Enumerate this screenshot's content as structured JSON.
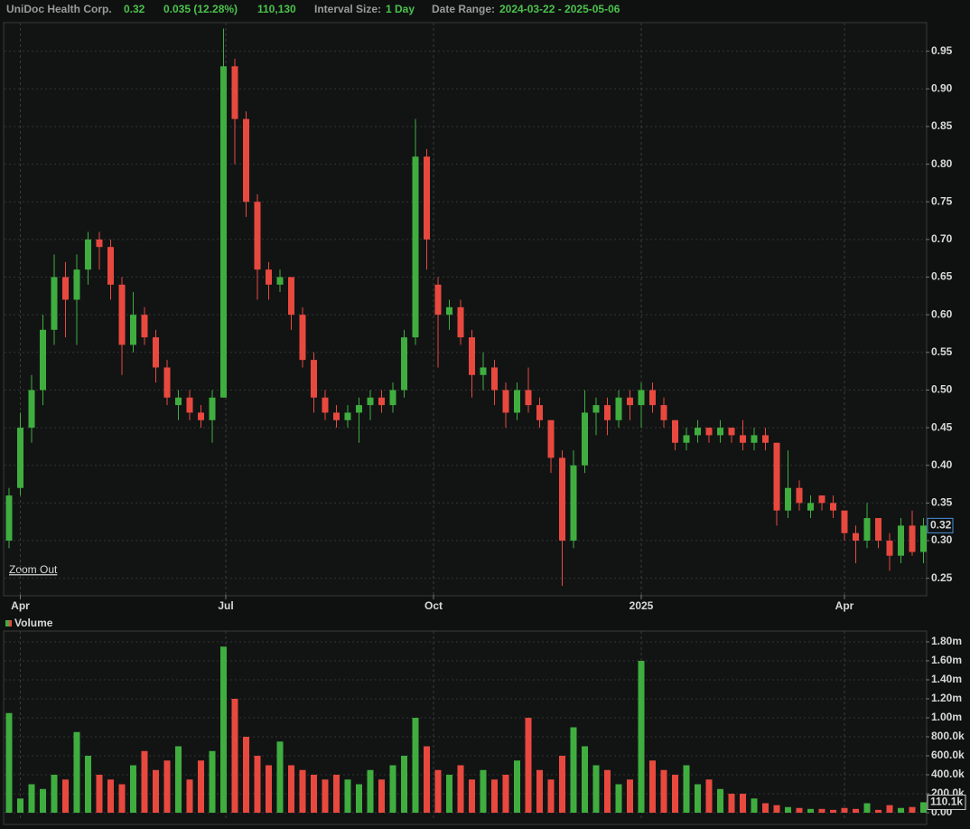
{
  "header": {
    "title": "UniDoc Health Corp.",
    "price": "0.32",
    "change": "0.035 (12.28%)",
    "volume": "110,130",
    "interval_label": "Interval Size:",
    "interval": "1 Day",
    "range_label": "Date Range:",
    "range": "2024-03-22 - 2025-05-06"
  },
  "chart_data": [
    {
      "type": "candlestick",
      "zoom_label": "Zoom Out",
      "up_color": "#3fae3f",
      "down_color": "#e8493f",
      "grid": true,
      "xlim": [
        "2024-03-25",
        "2025-05-07"
      ],
      "xticks": [
        {
          "value": "2024-04-01",
          "label": "Apr"
        },
        {
          "value": "2024-07-01",
          "label": "Jul"
        },
        {
          "value": "2024-10-01",
          "label": "Oct"
        },
        {
          "value": "2025-01-01",
          "label": "2025"
        },
        {
          "value": "2025-04-01",
          "label": "Apr"
        }
      ],
      "ylim": [
        0.228,
        0.988
      ],
      "yticks": [
        0.25,
        {
          "value": 0.3,
          "label": "0.30"
        },
        0.35,
        {
          "value": 0.4,
          "label": "0.40"
        },
        0.45,
        {
          "value": 0.5,
          "label": "0.50"
        },
        0.55,
        {
          "value": 0.6,
          "label": "0.60"
        },
        0.65,
        {
          "value": 0.7,
          "label": "0.70"
        },
        0.75,
        {
          "value": 0.8,
          "label": "0.80"
        },
        0.85,
        {
          "value": 0.9,
          "label": "0.90"
        },
        0.95
      ],
      "x": [
        "2024-03-27",
        "2024-04-01",
        "2024-04-06",
        "2024-04-11",
        "2024-04-16",
        "2024-04-21",
        "2024-04-26",
        "2024-05-01",
        "2024-05-06",
        "2024-05-11",
        "2024-05-16",
        "2024-05-21",
        "2024-05-26",
        "2024-05-31",
        "2024-06-05",
        "2024-06-10",
        "2024-06-15",
        "2024-06-20",
        "2024-06-25",
        "2024-06-30",
        "2024-07-05",
        "2024-07-10",
        "2024-07-15",
        "2024-07-20",
        "2024-07-25",
        "2024-07-30",
        "2024-08-04",
        "2024-08-09",
        "2024-08-14",
        "2024-08-19",
        "2024-08-24",
        "2024-08-29",
        "2024-09-03",
        "2024-09-08",
        "2024-09-13",
        "2024-09-18",
        "2024-09-23",
        "2024-09-28",
        "2024-10-03",
        "2024-10-08",
        "2024-10-13",
        "2024-10-18",
        "2024-10-23",
        "2024-10-28",
        "2024-11-02",
        "2024-11-07",
        "2024-11-12",
        "2024-11-17",
        "2024-11-22",
        "2024-11-27",
        "2024-12-02",
        "2024-12-07",
        "2024-12-12",
        "2024-12-17",
        "2024-12-22",
        "2024-12-27",
        "2025-01-01",
        "2025-01-06",
        "2025-01-11",
        "2025-01-16",
        "2025-01-21",
        "2025-01-26",
        "2025-01-31",
        "2025-02-05",
        "2025-02-10",
        "2025-02-15",
        "2025-02-20",
        "2025-02-25",
        "2025-03-02",
        "2025-03-07",
        "2025-03-12",
        "2025-03-17",
        "2025-03-22",
        "2025-03-27",
        "2025-04-01",
        "2025-04-06",
        "2025-04-11",
        "2025-04-16",
        "2025-04-21",
        "2025-04-26",
        "2025-05-01",
        "2025-05-06"
      ],
      "ohlc": [
        [
          0.3,
          0.37,
          0.29,
          0.36
        ],
        [
          0.37,
          0.47,
          0.36,
          0.45
        ],
        [
          0.45,
          0.52,
          0.43,
          0.5
        ],
        [
          0.5,
          0.6,
          0.48,
          0.58
        ],
        [
          0.58,
          0.68,
          0.56,
          0.65
        ],
        [
          0.65,
          0.67,
          0.57,
          0.62
        ],
        [
          0.62,
          0.68,
          0.56,
          0.66
        ],
        [
          0.66,
          0.71,
          0.64,
          0.7
        ],
        [
          0.7,
          0.71,
          0.66,
          0.69
        ],
        [
          0.69,
          0.7,
          0.62,
          0.64
        ],
        [
          0.64,
          0.65,
          0.52,
          0.56
        ],
        [
          0.56,
          0.63,
          0.55,
          0.6
        ],
        [
          0.6,
          0.61,
          0.56,
          0.57
        ],
        [
          0.57,
          0.58,
          0.51,
          0.53
        ],
        [
          0.53,
          0.54,
          0.48,
          0.49
        ],
        [
          0.48,
          0.5,
          0.46,
          0.49
        ],
        [
          0.49,
          0.5,
          0.46,
          0.47
        ],
        [
          0.47,
          0.48,
          0.45,
          0.46
        ],
        [
          0.46,
          0.5,
          0.43,
          0.49
        ],
        [
          0.49,
          0.98,
          0.49,
          0.93
        ],
        [
          0.93,
          0.94,
          0.8,
          0.86
        ],
        [
          0.86,
          0.87,
          0.73,
          0.75
        ],
        [
          0.75,
          0.76,
          0.62,
          0.66
        ],
        [
          0.66,
          0.67,
          0.62,
          0.64
        ],
        [
          0.64,
          0.66,
          0.63,
          0.65
        ],
        [
          0.65,
          0.65,
          0.58,
          0.6
        ],
        [
          0.6,
          0.61,
          0.53,
          0.54
        ],
        [
          0.54,
          0.55,
          0.47,
          0.49
        ],
        [
          0.49,
          0.5,
          0.46,
          0.47
        ],
        [
          0.47,
          0.48,
          0.45,
          0.46
        ],
        [
          0.46,
          0.48,
          0.45,
          0.47
        ],
        [
          0.47,
          0.49,
          0.43,
          0.48
        ],
        [
          0.48,
          0.5,
          0.46,
          0.49
        ],
        [
          0.49,
          0.5,
          0.47,
          0.48
        ],
        [
          0.48,
          0.51,
          0.47,
          0.5
        ],
        [
          0.5,
          0.58,
          0.49,
          0.57
        ],
        [
          0.57,
          0.86,
          0.56,
          0.81
        ],
        [
          0.81,
          0.82,
          0.66,
          0.7
        ],
        [
          0.64,
          0.65,
          0.53,
          0.6
        ],
        [
          0.6,
          0.62,
          0.58,
          0.61
        ],
        [
          0.61,
          0.62,
          0.56,
          0.57
        ],
        [
          0.57,
          0.58,
          0.49,
          0.52
        ],
        [
          0.52,
          0.55,
          0.5,
          0.53
        ],
        [
          0.53,
          0.54,
          0.48,
          0.5
        ],
        [
          0.5,
          0.51,
          0.45,
          0.47
        ],
        [
          0.47,
          0.51,
          0.46,
          0.5
        ],
        [
          0.5,
          0.53,
          0.47,
          0.48
        ],
        [
          0.48,
          0.49,
          0.45,
          0.46
        ],
        [
          0.46,
          0.46,
          0.39,
          0.41
        ],
        [
          0.41,
          0.42,
          0.24,
          0.3
        ],
        [
          0.3,
          0.42,
          0.29,
          0.4
        ],
        [
          0.4,
          0.5,
          0.39,
          0.47
        ],
        [
          0.47,
          0.49,
          0.44,
          0.48
        ],
        [
          0.48,
          0.49,
          0.44,
          0.46
        ],
        [
          0.46,
          0.5,
          0.45,
          0.49
        ],
        [
          0.49,
          0.5,
          0.46,
          0.48
        ],
        [
          0.48,
          0.51,
          0.45,
          0.5
        ],
        [
          0.5,
          0.51,
          0.47,
          0.48
        ],
        [
          0.48,
          0.49,
          0.45,
          0.46
        ],
        [
          0.46,
          0.46,
          0.42,
          0.43
        ],
        [
          0.43,
          0.45,
          0.42,
          0.44
        ],
        [
          0.44,
          0.46,
          0.43,
          0.45
        ],
        [
          0.45,
          0.45,
          0.43,
          0.44
        ],
        [
          0.44,
          0.46,
          0.43,
          0.45
        ],
        [
          0.45,
          0.45,
          0.43,
          0.44
        ],
        [
          0.44,
          0.46,
          0.42,
          0.43
        ],
        [
          0.43,
          0.45,
          0.42,
          0.44
        ],
        [
          0.44,
          0.45,
          0.42,
          0.43
        ],
        [
          0.43,
          0.43,
          0.32,
          0.34
        ],
        [
          0.34,
          0.42,
          0.33,
          0.37
        ],
        [
          0.37,
          0.38,
          0.34,
          0.35
        ],
        [
          0.34,
          0.36,
          0.33,
          0.35
        ],
        [
          0.36,
          0.36,
          0.34,
          0.35
        ],
        [
          0.35,
          0.36,
          0.33,
          0.34
        ],
        [
          0.34,
          0.34,
          0.3,
          0.31
        ],
        [
          0.31,
          0.32,
          0.27,
          0.3
        ],
        [
          0.3,
          0.35,
          0.29,
          0.33
        ],
        [
          0.33,
          0.33,
          0.29,
          0.3
        ],
        [
          0.3,
          0.31,
          0.26,
          0.28
        ],
        [
          0.28,
          0.33,
          0.27,
          0.32
        ],
        [
          0.32,
          0.34,
          0.28,
          0.285
        ],
        [
          0.285,
          0.33,
          0.27,
          0.32
        ]
      ]
    },
    {
      "type": "volume",
      "title": "Volume",
      "grid": true,
      "last_label": "110.1k",
      "xlim": [
        "2024-03-25",
        "2025-05-07"
      ],
      "ylim": [
        -57000,
        1914000
      ],
      "yticks": [
        {
          "value": 0,
          "label": "0.00"
        },
        {
          "value": 200000,
          "label": "200.0k"
        },
        {
          "value": 400000,
          "label": "400.0k"
        },
        {
          "value": 600000,
          "label": "600.0k"
        },
        {
          "value": 800000,
          "label": "800.0k"
        },
        {
          "value": 1000000,
          "label": "1.00m"
        },
        {
          "value": 1200000,
          "label": "1.20m"
        },
        {
          "value": 1400000,
          "label": "1.40m"
        },
        {
          "value": 1600000,
          "label": "1.60m"
        },
        {
          "value": 1800000,
          "label": "1.80m"
        }
      ],
      "x": [
        "2024-03-27",
        "2024-04-01",
        "2024-04-06",
        "2024-04-11",
        "2024-04-16",
        "2024-04-21",
        "2024-04-26",
        "2024-05-01",
        "2024-05-06",
        "2024-05-11",
        "2024-05-16",
        "2024-05-21",
        "2024-05-26",
        "2024-05-31",
        "2024-06-05",
        "2024-06-10",
        "2024-06-15",
        "2024-06-20",
        "2024-06-25",
        "2024-06-30",
        "2024-07-05",
        "2024-07-10",
        "2024-07-15",
        "2024-07-20",
        "2024-07-25",
        "2024-07-30",
        "2024-08-04",
        "2024-08-09",
        "2024-08-14",
        "2024-08-19",
        "2024-08-24",
        "2024-08-29",
        "2024-09-03",
        "2024-09-08",
        "2024-09-13",
        "2024-09-18",
        "2024-09-23",
        "2024-09-28",
        "2024-10-03",
        "2024-10-08",
        "2024-10-13",
        "2024-10-18",
        "2024-10-23",
        "2024-10-28",
        "2024-11-02",
        "2024-11-07",
        "2024-11-12",
        "2024-11-17",
        "2024-11-22",
        "2024-11-27",
        "2024-12-02",
        "2024-12-07",
        "2024-12-12",
        "2024-12-17",
        "2024-12-22",
        "2024-12-27",
        "2025-01-01",
        "2025-01-06",
        "2025-01-11",
        "2025-01-16",
        "2025-01-21",
        "2025-01-26",
        "2025-01-31",
        "2025-02-05",
        "2025-02-10",
        "2025-02-15",
        "2025-02-20",
        "2025-02-25",
        "2025-03-02",
        "2025-03-07",
        "2025-03-12",
        "2025-03-17",
        "2025-03-22",
        "2025-03-27",
        "2025-04-01",
        "2025-04-06",
        "2025-04-11",
        "2025-04-16",
        "2025-04-21",
        "2025-04-26",
        "2025-05-01",
        "2025-05-06"
      ],
      "values": [
        1050000,
        150000,
        300000,
        250000,
        400000,
        350000,
        850000,
        600000,
        400000,
        350000,
        300000,
        500000,
        650000,
        450000,
        550000,
        700000,
        350000,
        550000,
        650000,
        1750000,
        1200000,
        800000,
        600000,
        500000,
        750000,
        500000,
        450000,
        400000,
        350000,
        400000,
        350000,
        300000,
        450000,
        350000,
        500000,
        600000,
        1000000,
        700000,
        450000,
        400000,
        500000,
        350000,
        450000,
        350000,
        400000,
        550000,
        1000000,
        450000,
        350000,
        600000,
        900000,
        700000,
        500000,
        450000,
        300000,
        350000,
        1600000,
        550000,
        450000,
        400000,
        500000,
        300000,
        350000,
        250000,
        200000,
        200000,
        150000,
        100000,
        80000,
        60000,
        50000,
        40000,
        40000,
        30000,
        50000,
        40000,
        100000,
        30000,
        80000,
        50000,
        60000,
        110130
      ]
    }
  ]
}
